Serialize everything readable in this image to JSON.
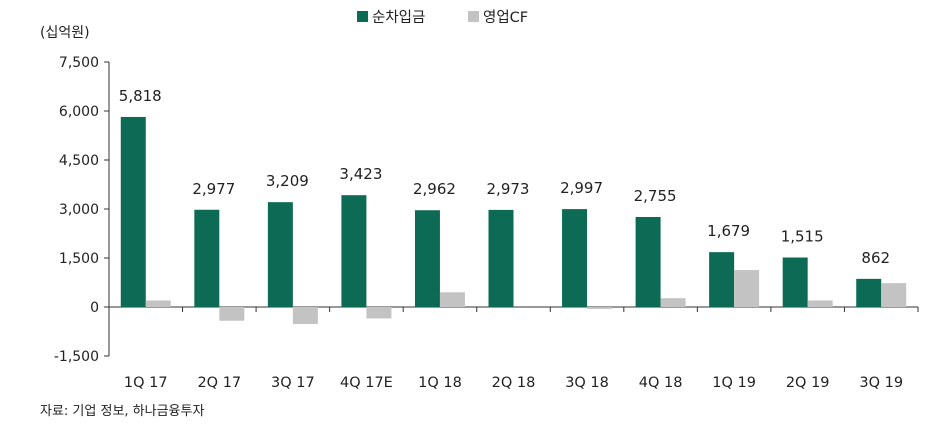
{
  "chart_data": {
    "type": "bar",
    "unit_label": "(십억원)",
    "categories": [
      "1Q 17",
      "2Q 17",
      "3Q 17",
      "4Q 17E",
      "1Q 18",
      "2Q 18",
      "3Q 18",
      "4Q 18",
      "1Q 19",
      "2Q 19",
      "3Q 19"
    ],
    "series": [
      {
        "name": "순차입금",
        "color": "#0d6b55",
        "values": [
          5818,
          2977,
          3209,
          3423,
          2962,
          2973,
          2997,
          2755,
          1679,
          1515,
          862
        ],
        "labels": [
          "5,818",
          "2,977",
          "3,209",
          "3,423",
          "2,962",
          "2,973",
          "2,997",
          "2,755",
          "1,679",
          "1,515",
          "862"
        ]
      },
      {
        "name": "영업CF",
        "color": "#c3c3c3",
        "values": [
          200,
          -420,
          -520,
          -350,
          450,
          0,
          -60,
          270,
          1130,
          200,
          730
        ]
      }
    ],
    "yticks": [
      -1500,
      0,
      1500,
      3000,
      4500,
      6000,
      7500
    ],
    "ytick_labels": [
      "-1,500",
      "0",
      "1,500",
      "3,000",
      "4,500",
      "6,000",
      "7,500"
    ],
    "ylim": [
      -1500,
      7500
    ],
    "legend_position": "top-center",
    "grid": false
  },
  "source_note": "자료: 기업 정보, 하나금융투자"
}
